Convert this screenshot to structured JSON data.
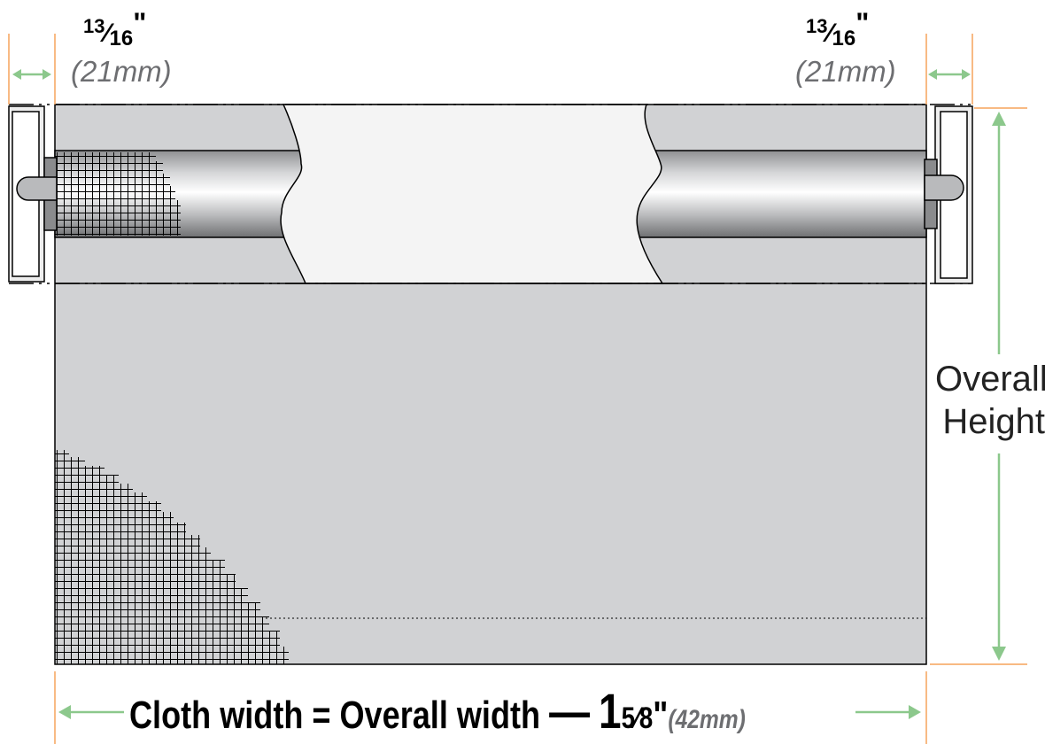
{
  "left_allowance": {
    "fraction_num": "13",
    "fraction_den": "16",
    "inch_mark": "\"",
    "metric": "(21mm)"
  },
  "right_allowance": {
    "fraction_num": "13",
    "fraction_den": "16",
    "inch_mark": "\"",
    "metric": "(21mm)"
  },
  "height_label": {
    "line1": "Overall",
    "line2": "Height"
  },
  "formula": {
    "text": "Cloth width = Overall width",
    "dash": "—",
    "whole": "1",
    "fraction": "5⁄8",
    "inch_mark": "\"",
    "metric": "(42mm)"
  },
  "colors": {
    "dimension_arrow": "#8cc88c",
    "guide_line": "#f5a35a",
    "cloth_fill": "#d1d2d4",
    "roller_dark": "#7a7b7d",
    "roller_light": "#f2f2f2",
    "cutaway": "#f4f4f4",
    "outline": "#000000"
  }
}
